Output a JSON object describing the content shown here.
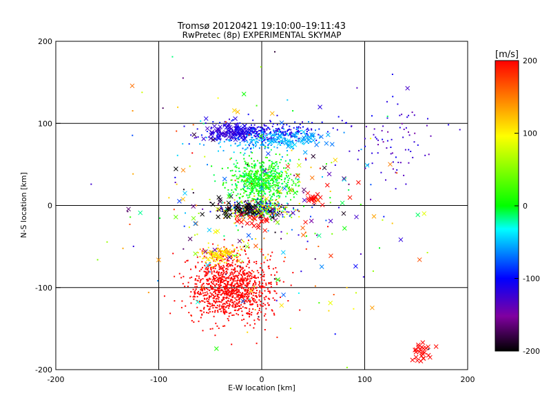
{
  "chart_data": {
    "type": "scatter",
    "title": "Tromsø 20120421 19:10:00–19:11:43",
    "subtitle": "RwPretec (8p) EXPERIMENTAL SKYMAP",
    "xlabel": "E-W location [km]",
    "ylabel": "N-S location [km]",
    "xlim": [
      -200,
      200
    ],
    "ylim": [
      -200,
      200
    ],
    "xticks": [
      "-200",
      "-100",
      "0",
      "100",
      "200"
    ],
    "yticks": [
      "-200",
      "-100",
      "0",
      "100",
      "200"
    ],
    "grid": true,
    "colorbar": {
      "label": "[m/s]",
      "range": [
        -200,
        200
      ],
      "ticks": [
        "-200",
        "-100",
        "0",
        "100",
        "200"
      ],
      "colors": [
        "#000000",
        "#8000a0",
        "#0000ff",
        "#00ffff",
        "#00ff00",
        "#ffff00",
        "#ff0000"
      ]
    },
    "clusters": [
      {
        "marker": "dot",
        "center": [
          -30,
          -100
        ],
        "spread": [
          40,
          40
        ],
        "count": 1100,
        "velocity": [
          195,
          205
        ]
      },
      {
        "marker": "dot",
        "center": [
          -40,
          -60
        ],
        "spread": [
          20,
          10
        ],
        "count": 120,
        "velocity": [
          90,
          140
        ]
      },
      {
        "marker": "dot",
        "center": [
          0,
          30
        ],
        "spread": [
          28,
          25
        ],
        "count": 700,
        "velocity": [
          -20,
          30
        ]
      },
      {
        "marker": "dot",
        "center": [
          -5,
          -5
        ],
        "spread": [
          30,
          10
        ],
        "count": 500,
        "velocity": [
          -200,
          200
        ]
      },
      {
        "marker": "dot",
        "center": [
          0,
          90
        ],
        "spread": [
          60,
          12
        ],
        "count": 300,
        "velocity": [
          -130,
          -90
        ]
      },
      {
        "marker": "dot",
        "center": [
          0,
          80
        ],
        "spread": [
          50,
          15
        ],
        "count": 200,
        "velocity": [
          -70,
          -40
        ]
      },
      {
        "marker": "dot",
        "center": [
          120,
          80
        ],
        "spread": [
          50,
          50
        ],
        "count": 80,
        "velocity": [
          -150,
          -100
        ]
      },
      {
        "marker": "dot",
        "center": [
          0,
          0
        ],
        "spread": [
          130,
          130
        ],
        "count": 220,
        "velocity": [
          -200,
          200
        ]
      },
      {
        "marker": "cross",
        "center": [
          -30,
          90
        ],
        "spread": [
          25,
          10
        ],
        "count": 70,
        "velocity": [
          -130,
          -100
        ]
      },
      {
        "marker": "cross",
        "center": [
          30,
          80
        ],
        "spread": [
          30,
          12
        ],
        "count": 40,
        "velocity": [
          -70,
          -40
        ]
      },
      {
        "marker": "cross",
        "center": [
          -20,
          -5
        ],
        "spread": [
          30,
          12
        ],
        "count": 50,
        "velocity": [
          -210,
          -180
        ]
      },
      {
        "marker": "cross",
        "center": [
          -10,
          -20
        ],
        "spread": [
          20,
          8
        ],
        "count": 20,
        "velocity": [
          195,
          205
        ]
      },
      {
        "marker": "cross",
        "center": [
          50,
          10
        ],
        "spread": [
          10,
          8
        ],
        "count": 15,
        "velocity": [
          195,
          205
        ]
      },
      {
        "marker": "cross",
        "center": [
          155,
          -180
        ],
        "spread": [
          15,
          12
        ],
        "count": 25,
        "velocity": [
          195,
          205
        ]
      },
      {
        "marker": "cross",
        "center": [
          -40,
          -60
        ],
        "spread": [
          15,
          8
        ],
        "count": 15,
        "velocity": [
          90,
          140
        ]
      },
      {
        "marker": "cross",
        "center": [
          0,
          0
        ],
        "spread": [
          130,
          130
        ],
        "count": 110,
        "velocity": [
          -200,
          200
        ]
      }
    ]
  }
}
